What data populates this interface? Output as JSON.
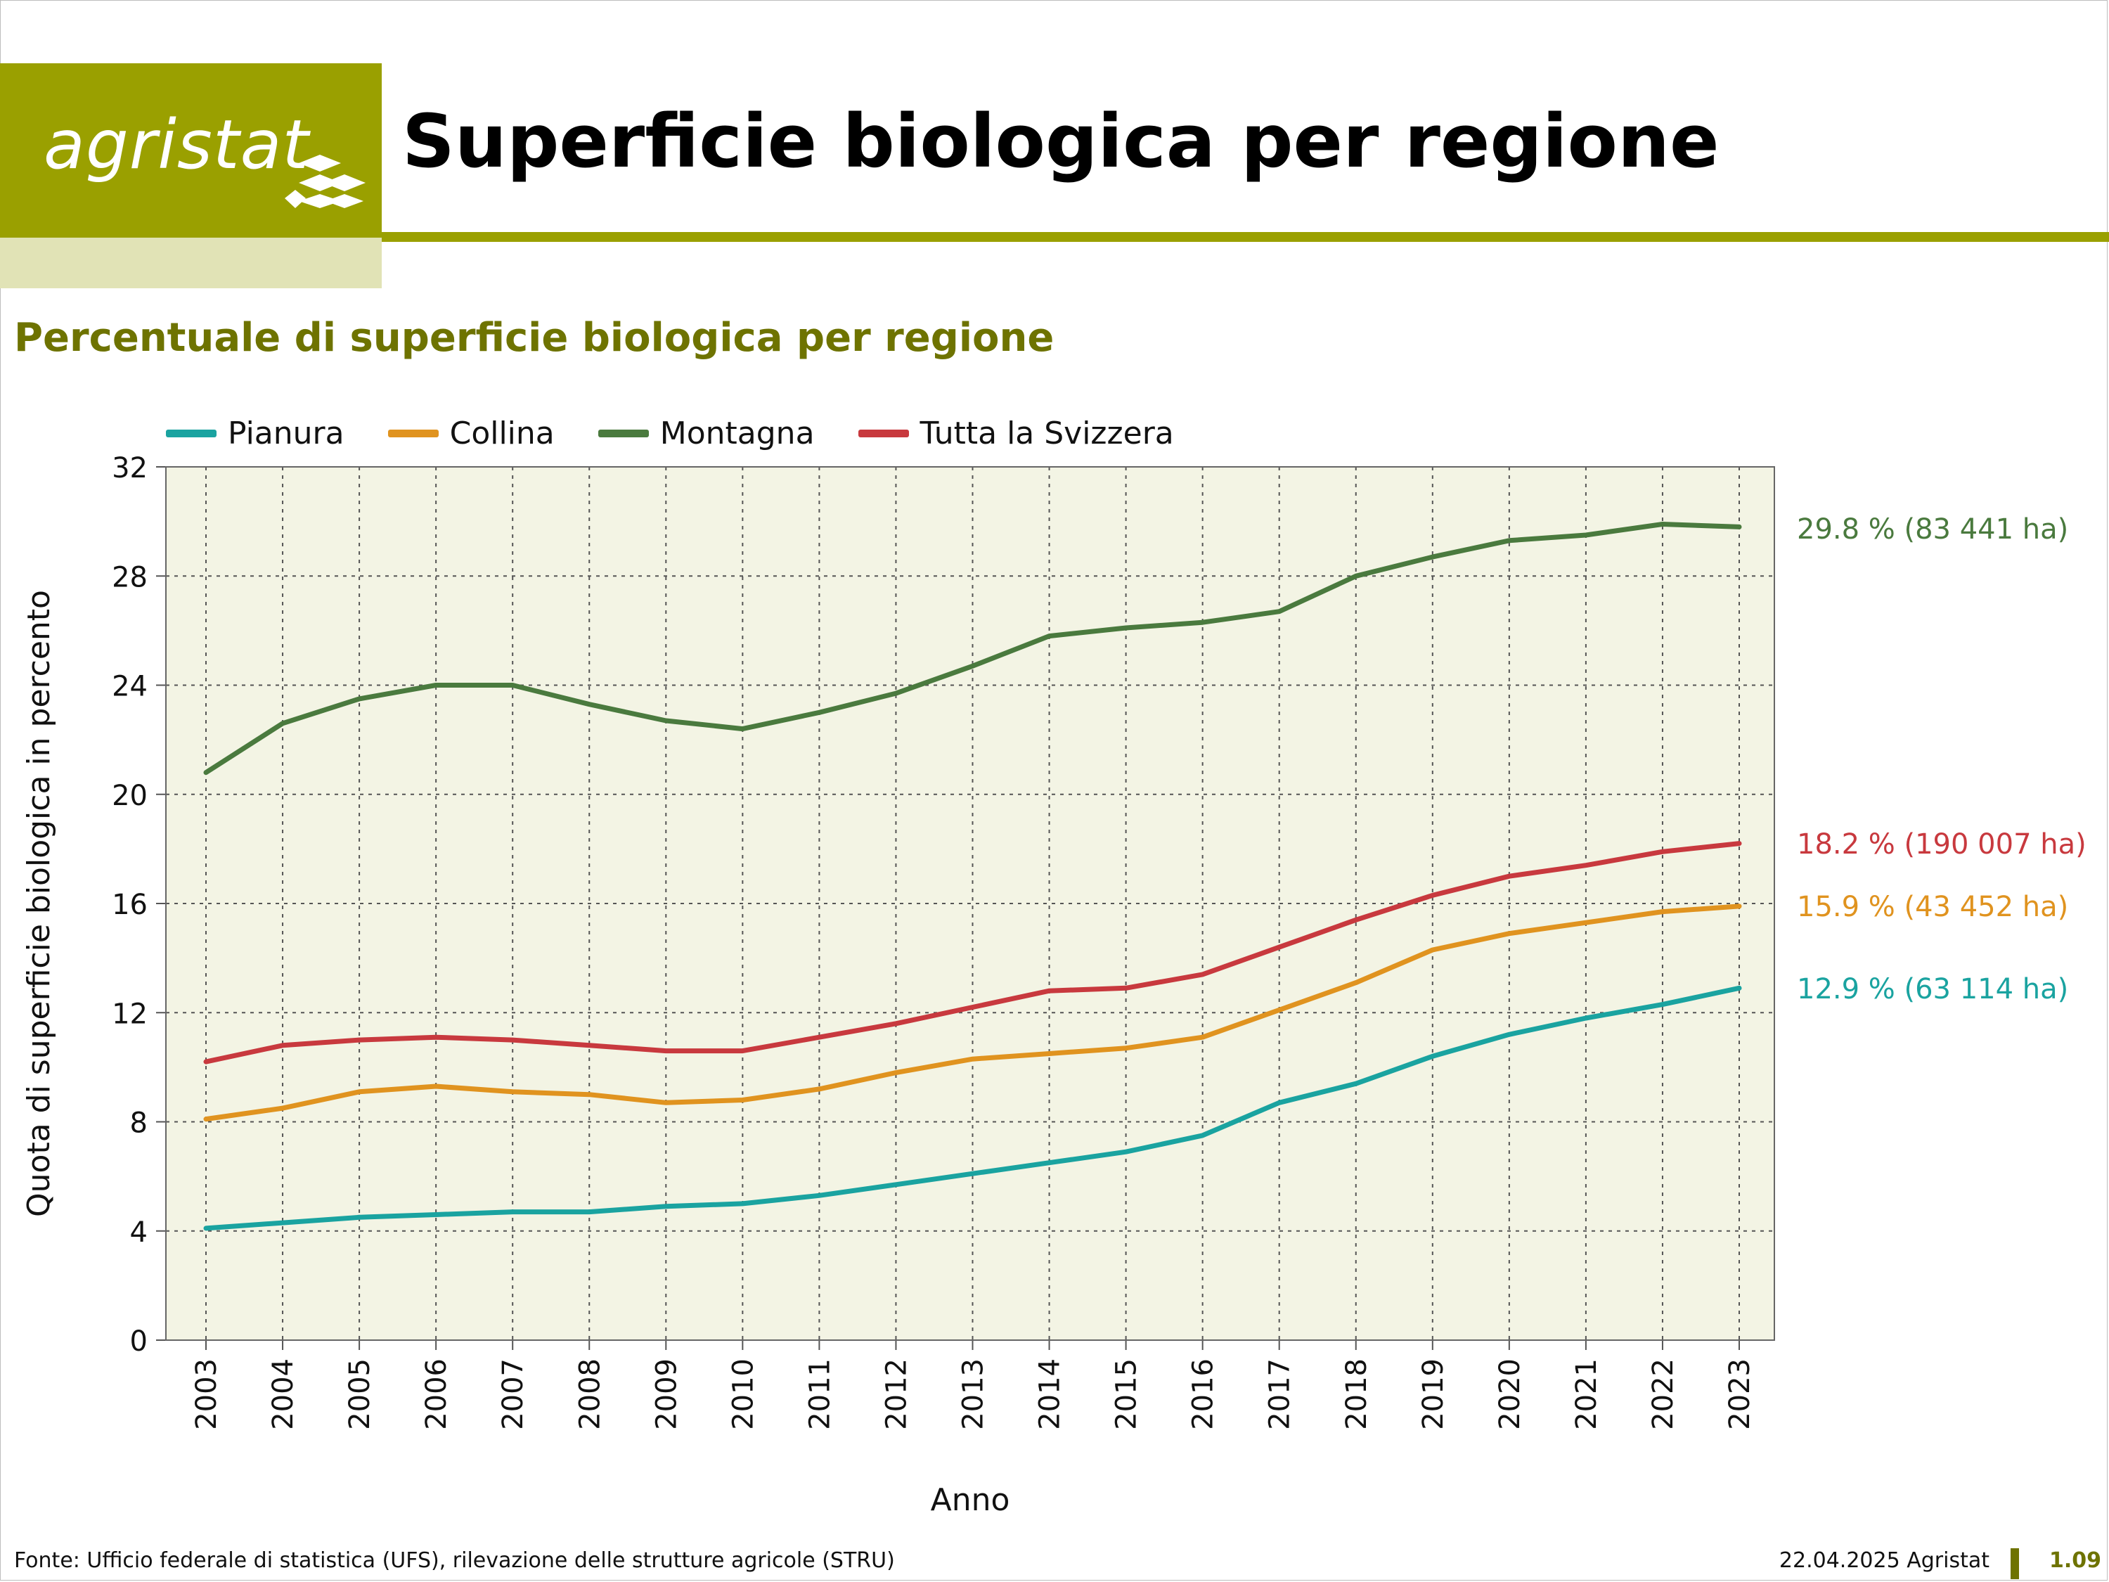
{
  "header": {
    "logo_text": "agristat",
    "title": "Superficie biologica per regione"
  },
  "subtitle": "Percentuale di superficie biologica per regione",
  "legend": [
    {
      "label": "Pianura",
      "color": "#1aa3a0"
    },
    {
      "label": "Collina",
      "color": "#e0931f"
    },
    {
      "label": "Montagna",
      "color": "#4a7a3e"
    },
    {
      "label": "Tutta la Svizzera",
      "color": "#c8393e"
    }
  ],
  "chart_data": {
    "type": "line",
    "x": [
      2003,
      2004,
      2005,
      2006,
      2007,
      2008,
      2009,
      2010,
      2011,
      2012,
      2013,
      2014,
      2015,
      2016,
      2017,
      2018,
      2019,
      2020,
      2021,
      2022,
      2023
    ],
    "series": [
      {
        "name": "Pianura",
        "color": "#1aa3a0",
        "values": [
          4.1,
          4.3,
          4.5,
          4.6,
          4.7,
          4.7,
          4.9,
          5.0,
          5.3,
          5.7,
          6.1,
          6.5,
          6.9,
          7.5,
          8.7,
          9.4,
          10.4,
          11.2,
          11.8,
          12.3,
          12.9
        ],
        "end_label": "12.9 % (63 114 ha)"
      },
      {
        "name": "Collina",
        "color": "#e0931f",
        "values": [
          8.1,
          8.5,
          9.1,
          9.3,
          9.1,
          9.0,
          8.7,
          8.8,
          9.2,
          9.8,
          10.3,
          10.5,
          10.7,
          11.1,
          12.1,
          13.1,
          14.3,
          14.9,
          15.3,
          15.7,
          15.9
        ],
        "end_label": "15.9 % (43 452 ha)"
      },
      {
        "name": "Montagna",
        "color": "#4a7a3e",
        "values": [
          20.8,
          22.6,
          23.5,
          24.0,
          24.0,
          23.3,
          22.7,
          22.4,
          23.0,
          23.7,
          24.7,
          25.8,
          26.1,
          26.3,
          26.7,
          28.0,
          28.7,
          29.3,
          29.5,
          29.9,
          29.8
        ],
        "end_label": "29.8 % (83 441 ha)"
      },
      {
        "name": "Tutta la Svizzera",
        "color": "#c8393e",
        "values": [
          10.2,
          10.8,
          11.0,
          11.1,
          11.0,
          10.8,
          10.6,
          10.6,
          11.1,
          11.6,
          12.2,
          12.8,
          12.9,
          13.4,
          14.4,
          15.4,
          16.3,
          17.0,
          17.4,
          17.9,
          18.2
        ],
        "end_label": "18.2 % (190 007 ha)"
      }
    ],
    "yticks": [
      0,
      4,
      8,
      12,
      16,
      20,
      24,
      28,
      32
    ],
    "ylim": [
      0,
      32
    ],
    "xlabel": "Anno",
    "ylabel": "Quota di superficie biologica in percento",
    "grid": true,
    "legend_position": "top",
    "plot_background": "#f3f4e4"
  },
  "footer": {
    "source": "Fonte: Ufficio federale di statistica (UFS), rilevazione delle strutture agricole (STRU)",
    "date": "22.04.2025 Agristat",
    "page": "1.09"
  }
}
